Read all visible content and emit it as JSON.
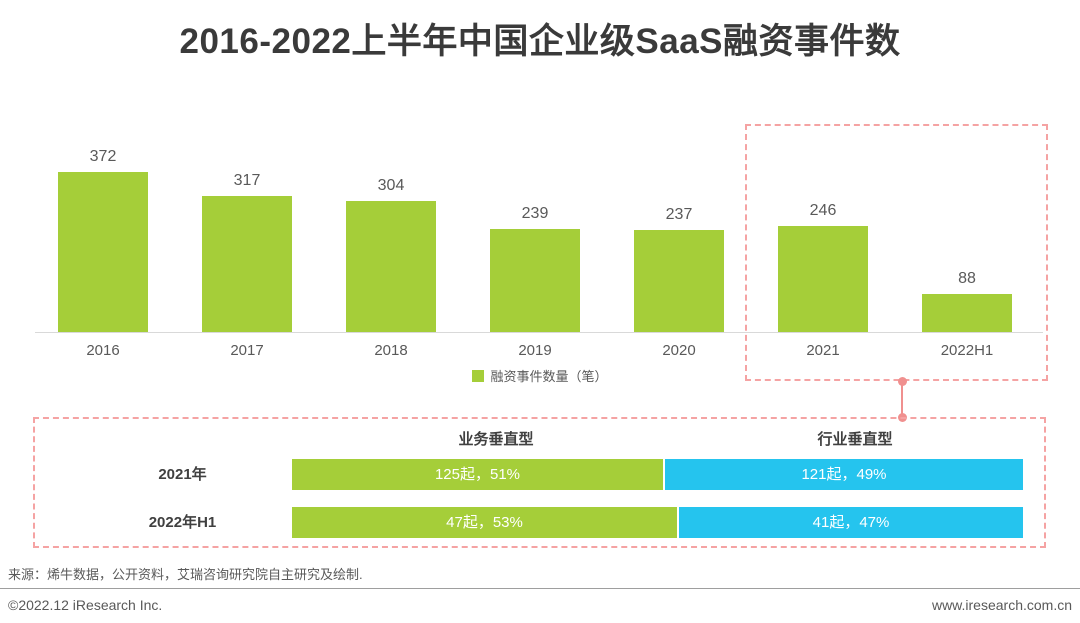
{
  "title": "2016-2022上半年中国企业级SaaS融资事件数",
  "chart_data": [
    {
      "type": "bar",
      "title": "2016-2022上半年中国企业级SaaS融资事件数",
      "categories": [
        "2016",
        "2017",
        "2018",
        "2019",
        "2020",
        "2021",
        "2022H1"
      ],
      "values": [
        372,
        317,
        304,
        239,
        237,
        246,
        88
      ],
      "legend": "融资事件数量（笔）",
      "legend_position": "bottom-center",
      "bar_color": "#a5ce39",
      "ylim": [
        0,
        400
      ],
      "grid": false,
      "highlighted_categories": [
        "2021",
        "2022H1"
      ]
    },
    {
      "type": "bar",
      "subtype": "horizontal-stacked",
      "categories": [
        "2021年",
        "2022年H1"
      ],
      "series": [
        {
          "name": "业务垂直型",
          "color": "#a5ce39",
          "values": [
            125,
            47
          ],
          "percents": [
            51,
            53
          ],
          "labels": [
            "125起，51%",
            "47起，53%"
          ]
        },
        {
          "name": "行业垂直型",
          "color": "#25c4ee",
          "values": [
            121,
            41
          ],
          "percents": [
            49,
            47
          ],
          "labels": [
            "121起，49%",
            "41起，47%"
          ]
        }
      ]
    }
  ],
  "source": "来源：烯牛数据，公开资料，艾瑞咨询研究院自主研究及绘制.",
  "footer": {
    "left": "©2022.12 iResearch Inc.",
    "right": "www.iresearch.com.cn"
  },
  "colors": {
    "bar_green": "#a5ce39",
    "bar_blue": "#25c4ee",
    "dashed_pink": "#f5a3a3",
    "connector_pink": "#f0908f",
    "title_text": "#3a3a3a",
    "gray_text": "#595959"
  }
}
